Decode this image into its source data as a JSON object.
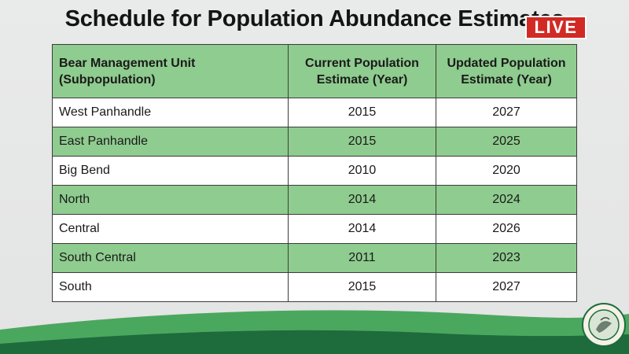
{
  "slide": {
    "title": "Schedule for Population Abundance Estimates",
    "live_badge": "LIVE"
  },
  "table": {
    "headers": [
      [
        "Bear Management Unit",
        "(Subpopulation)"
      ],
      [
        "Current Population",
        "Estimate (Year)"
      ],
      [
        "Updated Population",
        "Estimate (Year)"
      ]
    ],
    "rows": [
      {
        "unit": "West Panhandle",
        "current": "2015",
        "updated": "2027"
      },
      {
        "unit": "East Panhandle",
        "current": "2015",
        "updated": "2025"
      },
      {
        "unit": "Big Bend",
        "current": "2010",
        "updated": "2020"
      },
      {
        "unit": "North",
        "current": "2014",
        "updated": "2024"
      },
      {
        "unit": "Central",
        "current": "2014",
        "updated": "2026"
      },
      {
        "unit": "South Central",
        "current": "2011",
        "updated": "2023"
      },
      {
        "unit": "South",
        "current": "2015",
        "updated": "2027"
      }
    ]
  },
  "colors": {
    "header_green": "#8fcc8f",
    "row_green": "#8fcc8f",
    "row_white": "#ffffff",
    "live_red": "#d12a24",
    "wave_dark": "#1e6b3b",
    "wave_light": "#4aa85e",
    "wave_teal": "#2f7f8e"
  },
  "icons": {
    "seal": "agency-seal-icon",
    "live": "live-badge"
  }
}
